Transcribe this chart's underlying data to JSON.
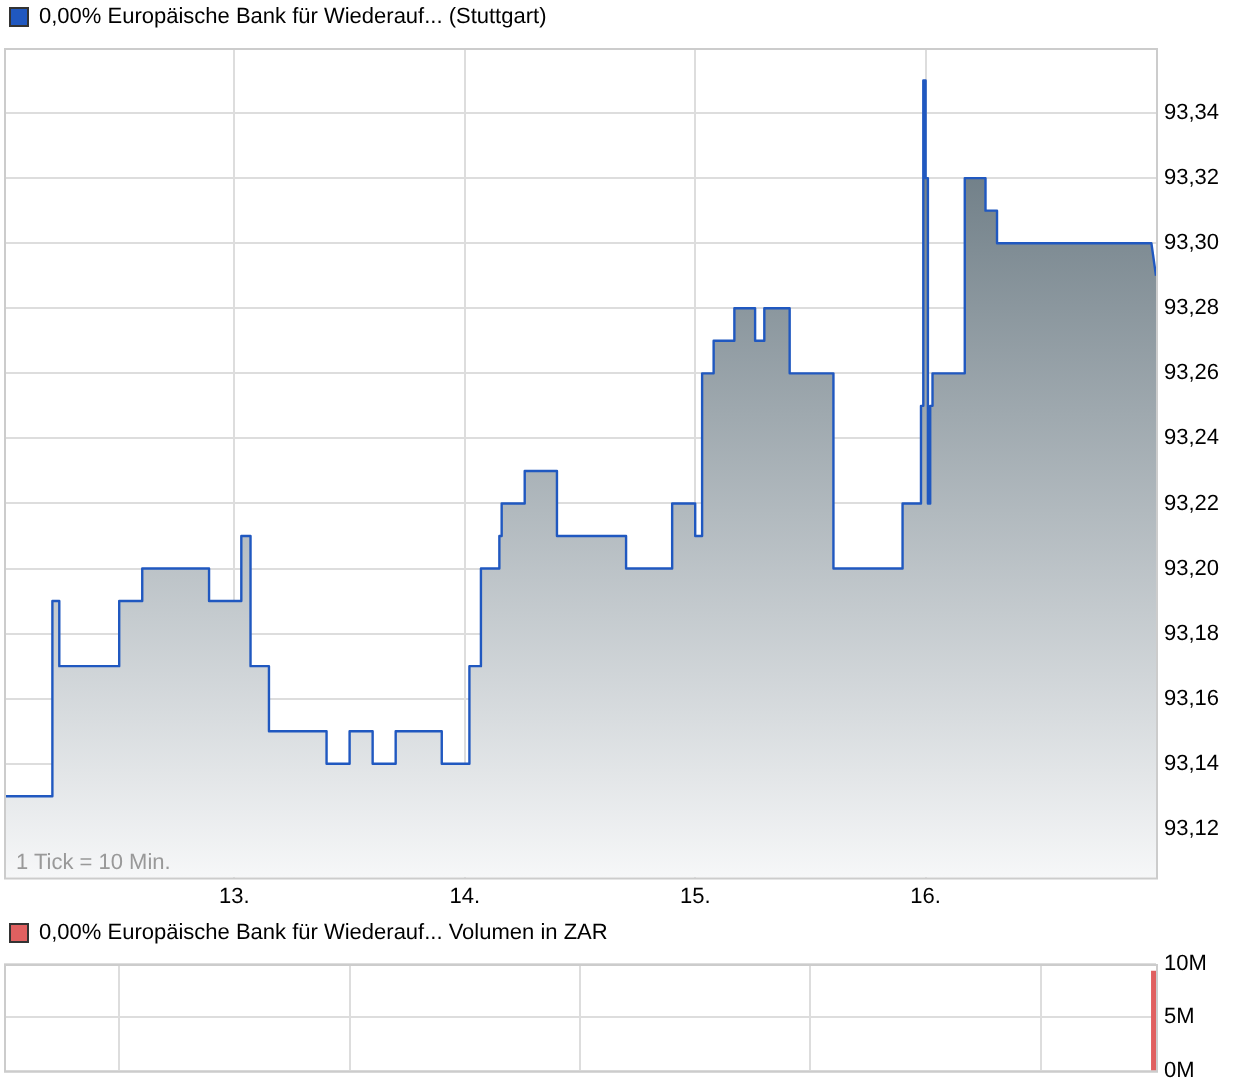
{
  "chart_data": [
    {
      "type": "area",
      "legend": "top left",
      "grid": true,
      "annotations": [
        "1 Tick = 10 Min."
      ],
      "xlim": [
        12,
        17
      ],
      "xticks": [
        {
          "value": 13,
          "label": "13."
        },
        {
          "value": 14,
          "label": "14."
        },
        {
          "value": 15,
          "label": "15."
        },
        {
          "value": 16,
          "label": "16."
        }
      ],
      "ylim": [
        93.105,
        93.36
      ],
      "yticks": [
        {
          "value": 93.12,
          "label": "93,12"
        },
        {
          "value": 93.14,
          "label": "93,14"
        },
        {
          "value": 93.16,
          "label": "93,16"
        },
        {
          "value": 93.18,
          "label": "93,18"
        },
        {
          "value": 93.2,
          "label": "93,20"
        },
        {
          "value": 93.22,
          "label": "93,22"
        },
        {
          "value": 93.24,
          "label": "93,24"
        },
        {
          "value": 93.26,
          "label": "93,26"
        },
        {
          "value": 93.28,
          "label": "93,28"
        },
        {
          "value": 93.3,
          "label": "93,30"
        },
        {
          "value": 93.32,
          "label": "93,32"
        },
        {
          "value": 93.34,
          "label": "93,34"
        }
      ],
      "x": [
        12.0,
        12.18,
        12.21,
        12.21,
        12.24,
        12.24,
        12.48,
        12.5,
        12.5,
        12.57,
        12.6,
        12.6,
        12.87,
        12.89,
        12.89,
        13.0,
        13.03,
        13.03,
        13.05,
        13.07,
        13.07,
        13.13,
        13.15,
        13.15,
        13.38,
        13.4,
        13.4,
        13.48,
        13.5,
        13.5,
        13.57,
        13.6,
        13.6,
        13.68,
        13.7,
        13.7,
        13.87,
        13.9,
        13.9,
        14.0,
        14.02,
        14.02,
        14.05,
        14.07,
        14.07,
        14.13,
        14.15,
        14.15,
        14.16,
        14.16,
        14.24,
        14.26,
        14.26,
        14.38,
        14.4,
        14.4,
        14.69,
        14.7,
        14.7,
        14.87,
        14.9,
        14.9,
        14.98,
        15.0,
        15.0,
        15.03,
        15.03,
        15.05,
        15.08,
        15.08,
        15.14,
        15.17,
        15.17,
        15.24,
        15.26,
        15.26,
        15.29,
        15.3,
        15.3,
        15.38,
        15.41,
        15.41,
        15.58,
        15.6,
        15.6,
        15.88,
        15.9,
        15.9,
        15.97,
        15.98,
        15.98,
        15.99,
        15.99,
        16.0,
        16.0,
        16.01,
        16.01,
        16.02,
        16.02,
        16.03,
        16.03,
        16.14,
        16.17,
        16.17,
        16.23,
        16.26,
        16.26,
        16.3,
        16.31,
        16.31,
        16.98,
        17.0
      ],
      "series": [
        {
          "name": "0,00% Europäische Bank für Wiederauf... (Stuttgart)",
          "color": "#2058c0",
          "values": [
            93.13,
            93.13,
            93.13,
            93.19,
            93.19,
            93.17,
            93.17,
            93.17,
            93.19,
            93.19,
            93.19,
            93.2,
            93.2,
            93.2,
            93.19,
            93.19,
            93.19,
            93.21,
            93.21,
            93.21,
            93.17,
            93.17,
            93.17,
            93.15,
            93.15,
            93.15,
            93.14,
            93.14,
            93.14,
            93.15,
            93.15,
            93.15,
            93.14,
            93.14,
            93.14,
            93.15,
            93.15,
            93.15,
            93.14,
            93.14,
            93.14,
            93.17,
            93.17,
            93.17,
            93.2,
            93.2,
            93.2,
            93.21,
            93.21,
            93.22,
            93.22,
            93.22,
            93.23,
            93.23,
            93.23,
            93.21,
            93.21,
            93.21,
            93.2,
            93.2,
            93.2,
            93.22,
            93.22,
            93.22,
            93.21,
            93.21,
            93.26,
            93.26,
            93.26,
            93.27,
            93.27,
            93.27,
            93.28,
            93.28,
            93.28,
            93.27,
            93.27,
            93.27,
            93.28,
            93.28,
            93.28,
            93.26,
            93.26,
            93.26,
            93.2,
            93.2,
            93.2,
            93.22,
            93.22,
            93.22,
            93.25,
            93.25,
            93.35,
            93.35,
            93.32,
            93.32,
            93.22,
            93.22,
            93.25,
            93.25,
            93.26,
            93.26,
            93.26,
            93.32,
            93.32,
            93.32,
            93.31,
            93.31,
            93.31,
            93.3,
            93.3,
            93.29
          ]
        }
      ]
    },
    {
      "type": "bar",
      "legend": "top left",
      "grid": true,
      "tick_labels": "y",
      "xlim": [
        12,
        17
      ],
      "xticks": [
        {
          "value": 13,
          "label": null
        },
        {
          "value": 14,
          "label": null
        },
        {
          "value": 15,
          "label": null
        },
        {
          "value": 16,
          "label": null
        }
      ],
      "ylim": [
        0,
        10000000
      ],
      "yticks": [
        {
          "value": 0,
          "label": "0M"
        },
        {
          "value": 5000000,
          "label": "5M"
        },
        {
          "value": 10000000,
          "label": "10M"
        }
      ],
      "x": [
        16.99
      ],
      "series": [
        {
          "name": "0,00% Europäische Bank für Wiederauf... Volumen in ZAR",
          "color": "#e06060",
          "values": [
            9300000
          ]
        }
      ]
    }
  ]
}
